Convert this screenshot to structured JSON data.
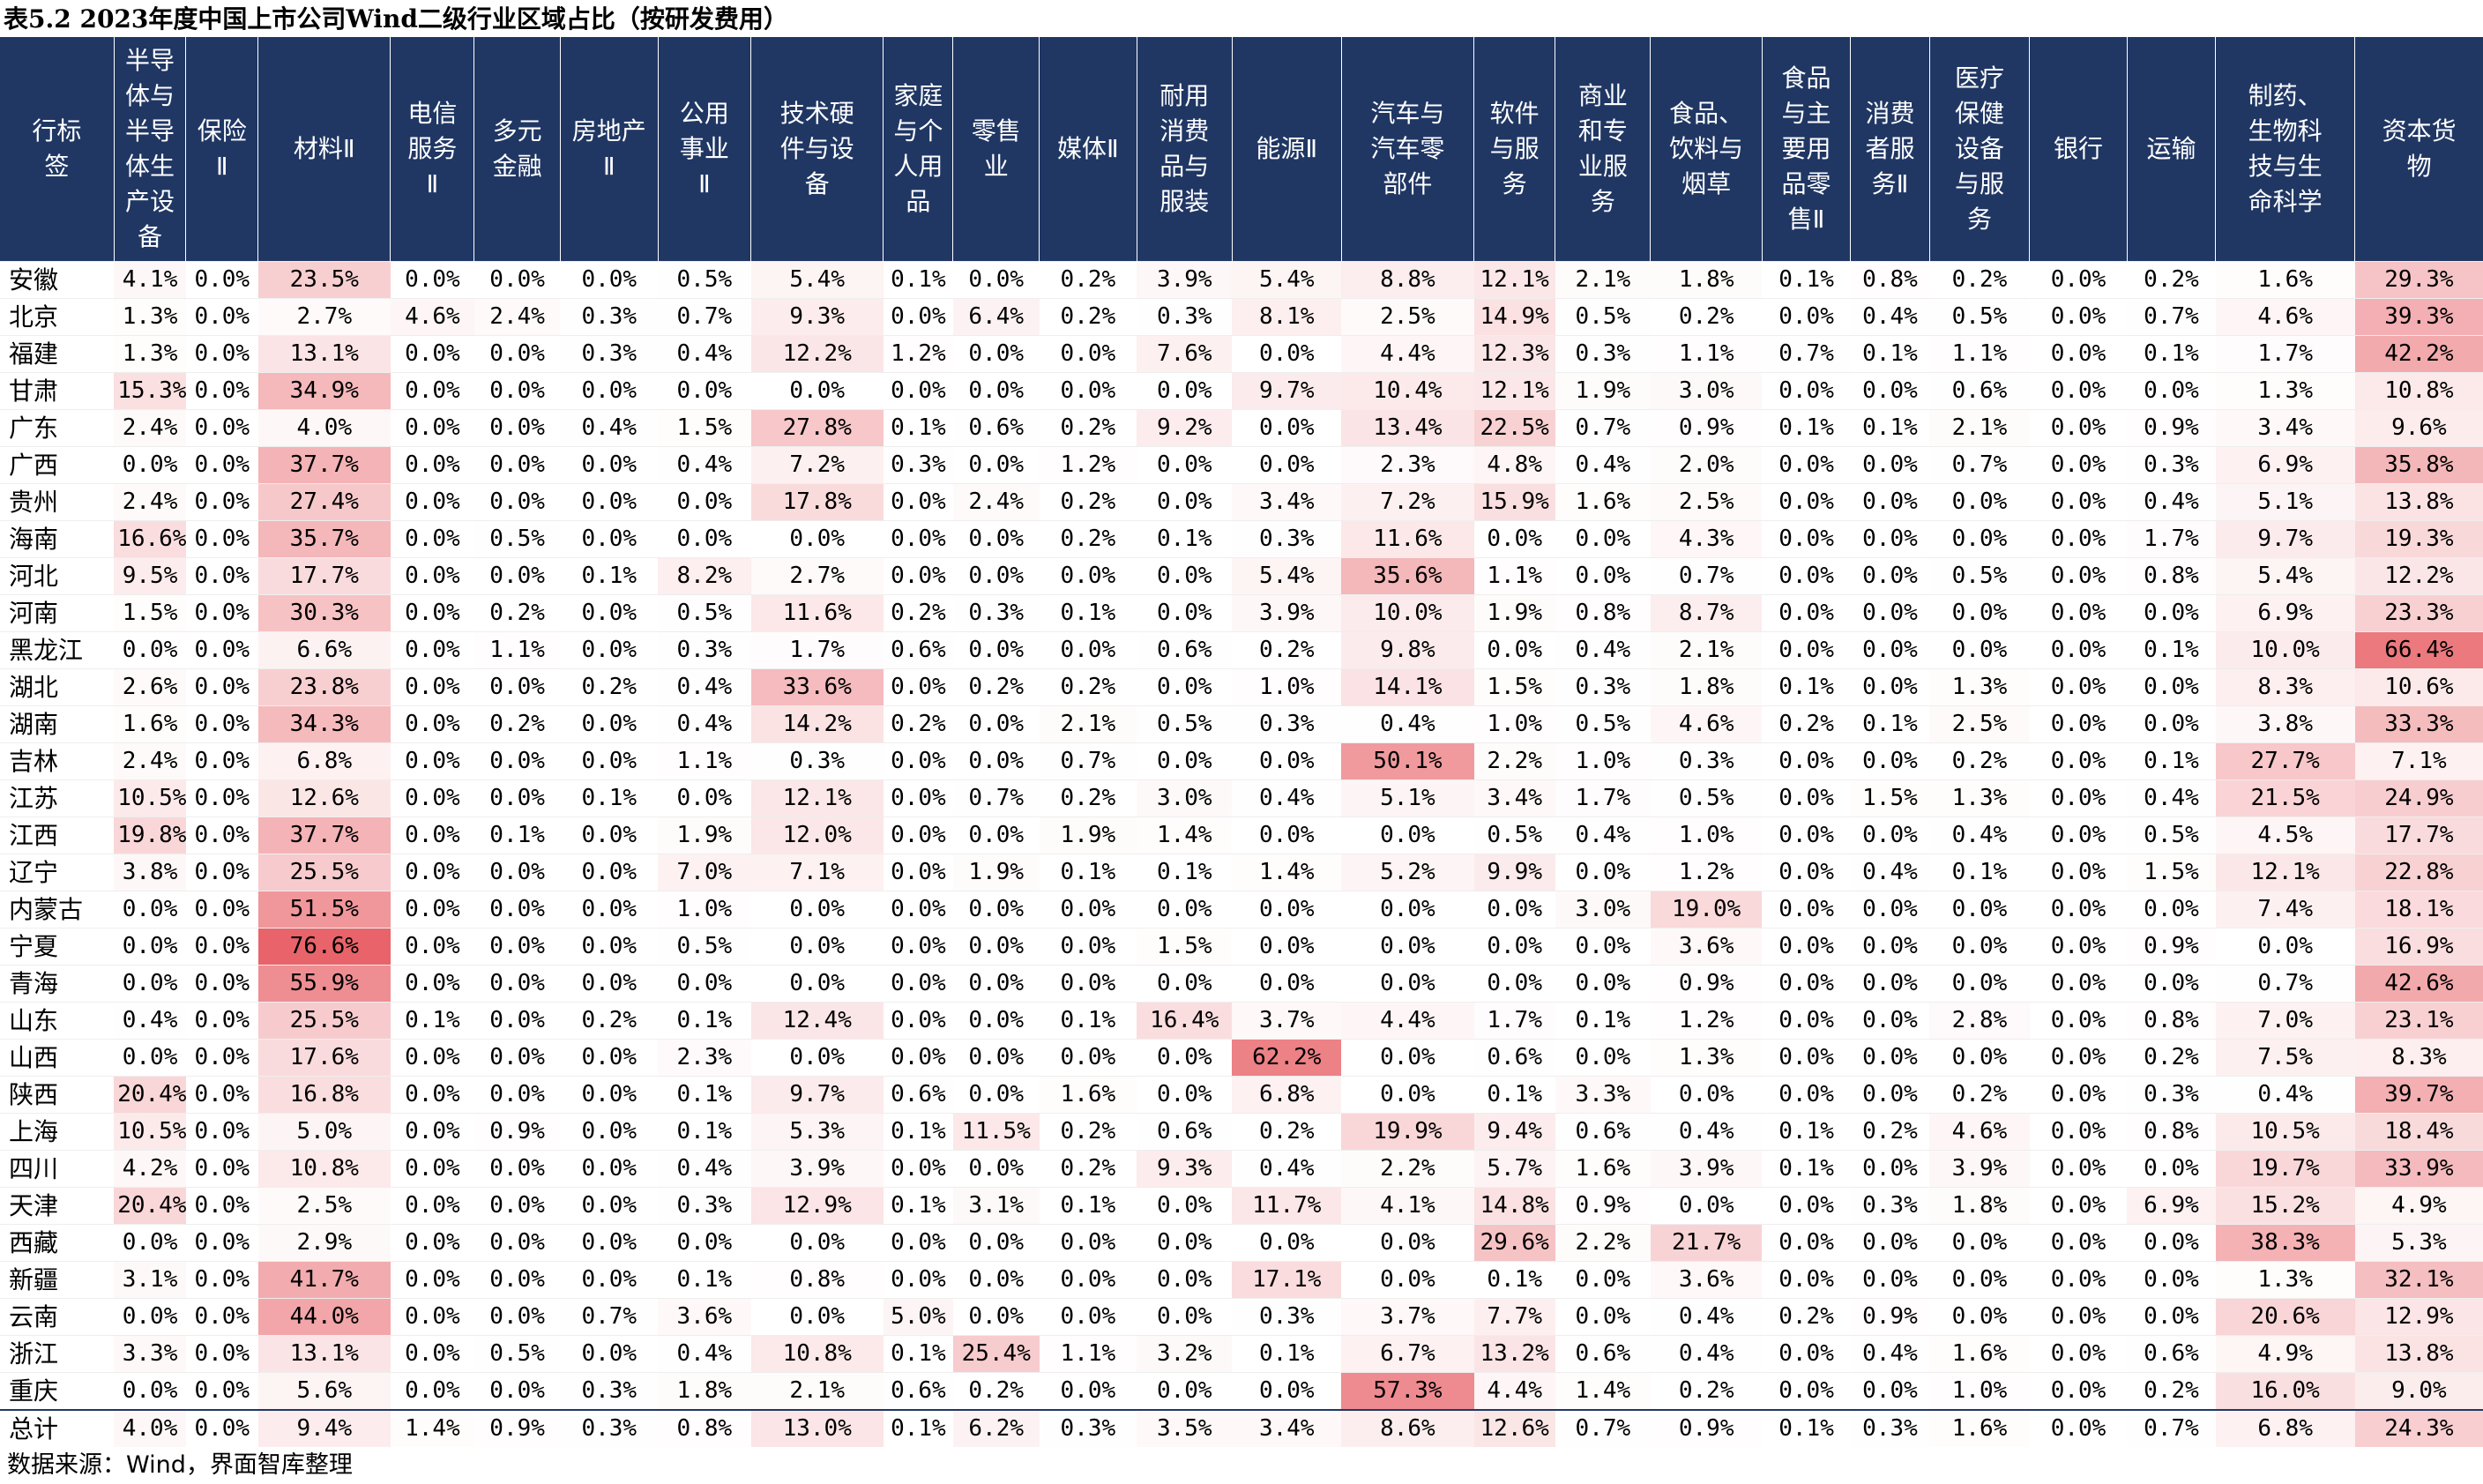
{
  "title": "表5.2 2023年度中国上市公司Wind二级行业区域占比（按研发费用）",
  "source": "数据来源：Wind，界面智库整理",
  "colors": {
    "header_bg": "#203764",
    "header_text": "#ffffff",
    "heat_max": "#e8646a",
    "heat_min": "#ffffff"
  },
  "chart_data": {
    "type": "heatmap",
    "title": "表5.2 2023年度中国上市公司Wind二级行业区域占比（按研发费用）",
    "value_unit": "%",
    "row_header": [
      "行标",
      "签"
    ],
    "columns": [
      [
        "半导",
        "体与",
        "半导",
        "体生",
        "产设",
        "备"
      ],
      [
        "保险",
        "Ⅱ"
      ],
      [
        "材料Ⅱ"
      ],
      [
        "电信",
        "服务",
        "Ⅱ"
      ],
      [
        "多元",
        "金融"
      ],
      [
        "房地产",
        "Ⅱ"
      ],
      [
        "公用",
        "事业",
        "Ⅱ"
      ],
      [
        "技术硬",
        "件与设",
        "备"
      ],
      [
        "家庭",
        "与个",
        "人用",
        "品"
      ],
      [
        "零售",
        "业"
      ],
      [
        "媒体Ⅱ"
      ],
      [
        "耐用",
        "消费",
        "品与",
        "服装"
      ],
      [
        "能源Ⅱ"
      ],
      [
        "汽车与",
        "汽车零",
        "部件"
      ],
      [
        "软件",
        "与服",
        "务"
      ],
      [
        "商业",
        "和专",
        "业服",
        "务"
      ],
      [
        "食品、",
        "饮料与",
        "烟草"
      ],
      [
        "食品",
        "与主",
        "要用",
        "品零",
        "售Ⅱ"
      ],
      [
        "消费",
        "者服",
        "务Ⅱ"
      ],
      [
        "医疗",
        "保健",
        "设备",
        "与服",
        "务"
      ],
      [
        "银行"
      ],
      [
        "运输"
      ],
      [
        "制药、",
        "生物科",
        "技与生",
        "命科学"
      ],
      [
        "资本货",
        "物"
      ]
    ],
    "rows": [
      {
        "label": "安徽",
        "values": [
          "4.1%",
          "0.0%",
          "23.5%",
          "0.0%",
          "0.0%",
          "0.0%",
          "0.5%",
          "5.4%",
          "0.1%",
          "0.0%",
          "0.2%",
          "3.9%",
          "5.4%",
          "8.8%",
          "12.1%",
          "2.1%",
          "1.8%",
          "0.1%",
          "0.8%",
          "0.2%",
          "0.0%",
          "0.2%",
          "1.6%",
          "29.3%"
        ]
      },
      {
        "label": "北京",
        "values": [
          "1.3%",
          "0.0%",
          "2.7%",
          "4.6%",
          "2.4%",
          "0.3%",
          "0.7%",
          "9.3%",
          "0.0%",
          "6.4%",
          "0.2%",
          "0.3%",
          "8.1%",
          "2.5%",
          "14.9%",
          "0.5%",
          "0.2%",
          "0.0%",
          "0.4%",
          "0.5%",
          "0.0%",
          "0.7%",
          "4.6%",
          "39.3%"
        ]
      },
      {
        "label": "福建",
        "values": [
          "1.3%",
          "0.0%",
          "13.1%",
          "0.0%",
          "0.0%",
          "0.3%",
          "0.4%",
          "12.2%",
          "1.2%",
          "0.0%",
          "0.0%",
          "7.6%",
          "0.0%",
          "4.4%",
          "12.3%",
          "0.3%",
          "1.1%",
          "0.7%",
          "0.1%",
          "1.1%",
          "0.0%",
          "0.1%",
          "1.7%",
          "42.2%"
        ]
      },
      {
        "label": "甘肃",
        "values": [
          "15.3%",
          "0.0%",
          "34.9%",
          "0.0%",
          "0.0%",
          "0.0%",
          "0.0%",
          "0.0%",
          "0.0%",
          "0.0%",
          "0.0%",
          "0.0%",
          "9.7%",
          "10.4%",
          "12.1%",
          "1.9%",
          "3.0%",
          "0.0%",
          "0.0%",
          "0.6%",
          "0.0%",
          "0.0%",
          "1.3%",
          "10.8%"
        ]
      },
      {
        "label": "广东",
        "values": [
          "2.4%",
          "0.0%",
          "4.0%",
          "0.0%",
          "0.0%",
          "0.4%",
          "1.5%",
          "27.8%",
          "0.1%",
          "0.6%",
          "0.2%",
          "9.2%",
          "0.0%",
          "13.4%",
          "22.5%",
          "0.7%",
          "0.9%",
          "0.1%",
          "0.1%",
          "2.1%",
          "0.0%",
          "0.9%",
          "3.4%",
          "9.6%"
        ]
      },
      {
        "label": "广西",
        "values": [
          "0.0%",
          "0.0%",
          "37.7%",
          "0.0%",
          "0.0%",
          "0.0%",
          "0.4%",
          "7.2%",
          "0.3%",
          "0.0%",
          "1.2%",
          "0.0%",
          "0.0%",
          "2.3%",
          "4.8%",
          "0.4%",
          "2.0%",
          "0.0%",
          "0.0%",
          "0.7%",
          "0.0%",
          "0.3%",
          "6.9%",
          "35.8%"
        ]
      },
      {
        "label": "贵州",
        "values": [
          "2.4%",
          "0.0%",
          "27.4%",
          "0.0%",
          "0.0%",
          "0.0%",
          "0.0%",
          "17.8%",
          "0.0%",
          "2.4%",
          "0.2%",
          "0.0%",
          "3.4%",
          "7.2%",
          "15.9%",
          "1.6%",
          "2.5%",
          "0.0%",
          "0.0%",
          "0.0%",
          "0.0%",
          "0.4%",
          "5.1%",
          "13.8%"
        ]
      },
      {
        "label": "海南",
        "values": [
          "16.6%",
          "0.0%",
          "35.7%",
          "0.0%",
          "0.5%",
          "0.0%",
          "0.0%",
          "0.0%",
          "0.0%",
          "0.0%",
          "0.2%",
          "0.1%",
          "0.3%",
          "11.6%",
          "0.0%",
          "0.0%",
          "4.3%",
          "0.0%",
          "0.0%",
          "0.0%",
          "0.0%",
          "1.7%",
          "9.7%",
          "19.3%"
        ]
      },
      {
        "label": "河北",
        "values": [
          "9.5%",
          "0.0%",
          "17.7%",
          "0.0%",
          "0.0%",
          "0.1%",
          "8.2%",
          "2.7%",
          "0.0%",
          "0.0%",
          "0.0%",
          "0.0%",
          "5.4%",
          "35.6%",
          "1.1%",
          "0.0%",
          "0.7%",
          "0.0%",
          "0.0%",
          "0.5%",
          "0.0%",
          "0.8%",
          "5.4%",
          "12.2%"
        ]
      },
      {
        "label": "河南",
        "values": [
          "1.5%",
          "0.0%",
          "30.3%",
          "0.0%",
          "0.2%",
          "0.0%",
          "0.5%",
          "11.6%",
          "0.2%",
          "0.3%",
          "0.1%",
          "0.0%",
          "3.9%",
          "10.0%",
          "1.9%",
          "0.8%",
          "8.7%",
          "0.0%",
          "0.0%",
          "0.0%",
          "0.0%",
          "0.0%",
          "6.9%",
          "23.3%"
        ]
      },
      {
        "label": "黑龙江",
        "values": [
          "0.0%",
          "0.0%",
          "6.6%",
          "0.0%",
          "1.1%",
          "0.0%",
          "0.3%",
          "1.7%",
          "0.6%",
          "0.0%",
          "0.0%",
          "0.6%",
          "0.2%",
          "9.8%",
          "0.0%",
          "0.4%",
          "2.1%",
          "0.0%",
          "0.0%",
          "0.0%",
          "0.0%",
          "0.1%",
          "10.0%",
          "66.4%"
        ]
      },
      {
        "label": "湖北",
        "values": [
          "2.6%",
          "0.0%",
          "23.8%",
          "0.0%",
          "0.0%",
          "0.2%",
          "0.4%",
          "33.6%",
          "0.0%",
          "0.2%",
          "0.2%",
          "0.0%",
          "1.0%",
          "14.1%",
          "1.5%",
          "0.3%",
          "1.8%",
          "0.1%",
          "0.0%",
          "1.3%",
          "0.0%",
          "0.0%",
          "8.3%",
          "10.6%"
        ]
      },
      {
        "label": "湖南",
        "values": [
          "1.6%",
          "0.0%",
          "34.3%",
          "0.0%",
          "0.2%",
          "0.0%",
          "0.4%",
          "14.2%",
          "0.2%",
          "0.0%",
          "2.1%",
          "0.5%",
          "0.3%",
          "0.4%",
          "1.0%",
          "0.5%",
          "4.6%",
          "0.2%",
          "0.1%",
          "2.5%",
          "0.0%",
          "0.0%",
          "3.8%",
          "33.3%"
        ]
      },
      {
        "label": "吉林",
        "values": [
          "2.4%",
          "0.0%",
          "6.8%",
          "0.0%",
          "0.0%",
          "0.0%",
          "1.1%",
          "0.3%",
          "0.0%",
          "0.0%",
          "0.7%",
          "0.0%",
          "0.0%",
          "50.1%",
          "2.2%",
          "1.0%",
          "0.3%",
          "0.0%",
          "0.0%",
          "0.2%",
          "0.0%",
          "0.1%",
          "27.7%",
          "7.1%"
        ]
      },
      {
        "label": "江苏",
        "values": [
          "10.5%",
          "0.0%",
          "12.6%",
          "0.0%",
          "0.0%",
          "0.1%",
          "0.0%",
          "12.1%",
          "0.0%",
          "0.7%",
          "0.2%",
          "3.0%",
          "0.4%",
          "5.1%",
          "3.4%",
          "1.7%",
          "0.5%",
          "0.0%",
          "1.5%",
          "1.3%",
          "0.0%",
          "0.4%",
          "21.5%",
          "24.9%"
        ]
      },
      {
        "label": "江西",
        "values": [
          "19.8%",
          "0.0%",
          "37.7%",
          "0.0%",
          "0.1%",
          "0.0%",
          "1.9%",
          "12.0%",
          "0.0%",
          "0.0%",
          "1.9%",
          "1.4%",
          "0.0%",
          "0.0%",
          "0.5%",
          "0.4%",
          "1.0%",
          "0.0%",
          "0.0%",
          "0.4%",
          "0.0%",
          "0.5%",
          "4.5%",
          "17.7%"
        ]
      },
      {
        "label": "辽宁",
        "values": [
          "3.8%",
          "0.0%",
          "25.5%",
          "0.0%",
          "0.0%",
          "0.0%",
          "7.0%",
          "7.1%",
          "0.0%",
          "1.9%",
          "0.1%",
          "0.1%",
          "1.4%",
          "5.2%",
          "9.9%",
          "0.0%",
          "1.2%",
          "0.0%",
          "0.4%",
          "0.1%",
          "0.0%",
          "1.5%",
          "12.1%",
          "22.8%"
        ]
      },
      {
        "label": "内蒙古",
        "values": [
          "0.0%",
          "0.0%",
          "51.5%",
          "0.0%",
          "0.0%",
          "0.0%",
          "1.0%",
          "0.0%",
          "0.0%",
          "0.0%",
          "0.0%",
          "0.0%",
          "0.0%",
          "0.0%",
          "0.0%",
          "3.0%",
          "19.0%",
          "0.0%",
          "0.0%",
          "0.0%",
          "0.0%",
          "0.0%",
          "7.4%",
          "18.1%"
        ]
      },
      {
        "label": "宁夏",
        "values": [
          "0.0%",
          "0.0%",
          "76.6%",
          "0.0%",
          "0.0%",
          "0.0%",
          "0.5%",
          "0.0%",
          "0.0%",
          "0.0%",
          "0.0%",
          "1.5%",
          "0.0%",
          "0.0%",
          "0.0%",
          "0.0%",
          "3.6%",
          "0.0%",
          "0.0%",
          "0.0%",
          "0.0%",
          "0.9%",
          "0.0%",
          "16.9%"
        ]
      },
      {
        "label": "青海",
        "values": [
          "0.0%",
          "0.0%",
          "55.9%",
          "0.0%",
          "0.0%",
          "0.0%",
          "0.0%",
          "0.0%",
          "0.0%",
          "0.0%",
          "0.0%",
          "0.0%",
          "0.0%",
          "0.0%",
          "0.0%",
          "0.0%",
          "0.9%",
          "0.0%",
          "0.0%",
          "0.0%",
          "0.0%",
          "0.0%",
          "0.7%",
          "42.6%"
        ]
      },
      {
        "label": "山东",
        "values": [
          "0.4%",
          "0.0%",
          "25.5%",
          "0.1%",
          "0.0%",
          "0.2%",
          "0.1%",
          "12.4%",
          "0.0%",
          "0.0%",
          "0.1%",
          "16.4%",
          "3.7%",
          "4.4%",
          "1.7%",
          "0.1%",
          "1.2%",
          "0.0%",
          "0.0%",
          "2.8%",
          "0.0%",
          "0.8%",
          "7.0%",
          "23.1%"
        ]
      },
      {
        "label": "山西",
        "values": [
          "0.0%",
          "0.0%",
          "17.6%",
          "0.0%",
          "0.0%",
          "0.0%",
          "2.3%",
          "0.0%",
          "0.0%",
          "0.0%",
          "0.0%",
          "0.0%",
          "62.2%",
          "0.0%",
          "0.6%",
          "0.0%",
          "1.3%",
          "0.0%",
          "0.0%",
          "0.0%",
          "0.0%",
          "0.2%",
          "7.5%",
          "8.3%"
        ]
      },
      {
        "label": "陕西",
        "values": [
          "20.4%",
          "0.0%",
          "16.8%",
          "0.0%",
          "0.0%",
          "0.0%",
          "0.1%",
          "9.7%",
          "0.6%",
          "0.0%",
          "1.6%",
          "0.0%",
          "6.8%",
          "0.0%",
          "0.1%",
          "3.3%",
          "0.0%",
          "0.0%",
          "0.0%",
          "0.2%",
          "0.0%",
          "0.3%",
          "0.4%",
          "39.7%"
        ]
      },
      {
        "label": "上海",
        "values": [
          "10.5%",
          "0.0%",
          "5.0%",
          "0.0%",
          "0.9%",
          "0.0%",
          "0.1%",
          "5.3%",
          "0.1%",
          "11.5%",
          "0.2%",
          "0.6%",
          "0.2%",
          "19.9%",
          "9.4%",
          "0.6%",
          "0.4%",
          "0.1%",
          "0.2%",
          "4.6%",
          "0.0%",
          "0.8%",
          "10.5%",
          "18.4%"
        ]
      },
      {
        "label": "四川",
        "values": [
          "4.2%",
          "0.0%",
          "10.8%",
          "0.0%",
          "0.0%",
          "0.0%",
          "0.4%",
          "3.9%",
          "0.0%",
          "0.0%",
          "0.2%",
          "9.3%",
          "0.4%",
          "2.2%",
          "5.7%",
          "1.6%",
          "3.9%",
          "0.1%",
          "0.0%",
          "3.9%",
          "0.0%",
          "0.0%",
          "19.7%",
          "33.9%"
        ]
      },
      {
        "label": "天津",
        "values": [
          "20.4%",
          "0.0%",
          "2.5%",
          "0.0%",
          "0.0%",
          "0.0%",
          "0.3%",
          "12.9%",
          "0.1%",
          "3.1%",
          "0.1%",
          "0.0%",
          "11.7%",
          "4.1%",
          "14.8%",
          "0.9%",
          "0.0%",
          "0.0%",
          "0.3%",
          "1.8%",
          "0.0%",
          "6.9%",
          "15.2%",
          "4.9%"
        ]
      },
      {
        "label": "西藏",
        "values": [
          "0.0%",
          "0.0%",
          "2.9%",
          "0.0%",
          "0.0%",
          "0.0%",
          "0.0%",
          "0.0%",
          "0.0%",
          "0.0%",
          "0.0%",
          "0.0%",
          "0.0%",
          "0.0%",
          "29.6%",
          "2.2%",
          "21.7%",
          "0.0%",
          "0.0%",
          "0.0%",
          "0.0%",
          "0.0%",
          "38.3%",
          "5.3%"
        ]
      },
      {
        "label": "新疆",
        "values": [
          "3.1%",
          "0.0%",
          "41.7%",
          "0.0%",
          "0.0%",
          "0.0%",
          "0.1%",
          "0.8%",
          "0.0%",
          "0.0%",
          "0.0%",
          "0.0%",
          "17.1%",
          "0.0%",
          "0.1%",
          "0.0%",
          "3.6%",
          "0.0%",
          "0.0%",
          "0.0%",
          "0.0%",
          "0.0%",
          "1.3%",
          "32.1%"
        ]
      },
      {
        "label": "云南",
        "values": [
          "0.0%",
          "0.0%",
          "44.0%",
          "0.0%",
          "0.0%",
          "0.7%",
          "3.6%",
          "0.0%",
          "5.0%",
          "0.0%",
          "0.0%",
          "0.0%",
          "0.3%",
          "3.7%",
          "7.7%",
          "0.0%",
          "0.4%",
          "0.2%",
          "0.9%",
          "0.0%",
          "0.0%",
          "0.0%",
          "20.6%",
          "12.9%"
        ]
      },
      {
        "label": "浙江",
        "values": [
          "3.3%",
          "0.0%",
          "13.1%",
          "0.0%",
          "0.5%",
          "0.0%",
          "0.4%",
          "10.8%",
          "0.1%",
          "25.4%",
          "1.1%",
          "3.2%",
          "0.1%",
          "6.7%",
          "13.2%",
          "0.6%",
          "0.4%",
          "0.0%",
          "0.4%",
          "1.6%",
          "0.0%",
          "0.6%",
          "4.9%",
          "13.8%"
        ]
      },
      {
        "label": "重庆",
        "values": [
          "0.0%",
          "0.0%",
          "5.6%",
          "0.0%",
          "0.0%",
          "0.3%",
          "1.8%",
          "2.1%",
          "0.6%",
          "0.2%",
          "0.0%",
          "0.0%",
          "0.0%",
          "57.3%",
          "4.4%",
          "1.4%",
          "0.2%",
          "0.0%",
          "0.0%",
          "1.0%",
          "0.0%",
          "0.2%",
          "16.0%",
          "9.0%"
        ]
      }
    ],
    "total_row": {
      "label": "总计",
      "values": [
        "4.0%",
        "0.0%",
        "9.4%",
        "1.4%",
        "0.9%",
        "0.3%",
        "0.8%",
        "13.0%",
        "0.1%",
        "6.2%",
        "0.3%",
        "3.5%",
        "3.4%",
        "8.6%",
        "12.6%",
        "0.7%",
        "0.9%",
        "0.1%",
        "0.3%",
        "1.6%",
        "0.0%",
        "0.7%",
        "6.8%",
        "24.3%"
      ]
    }
  }
}
